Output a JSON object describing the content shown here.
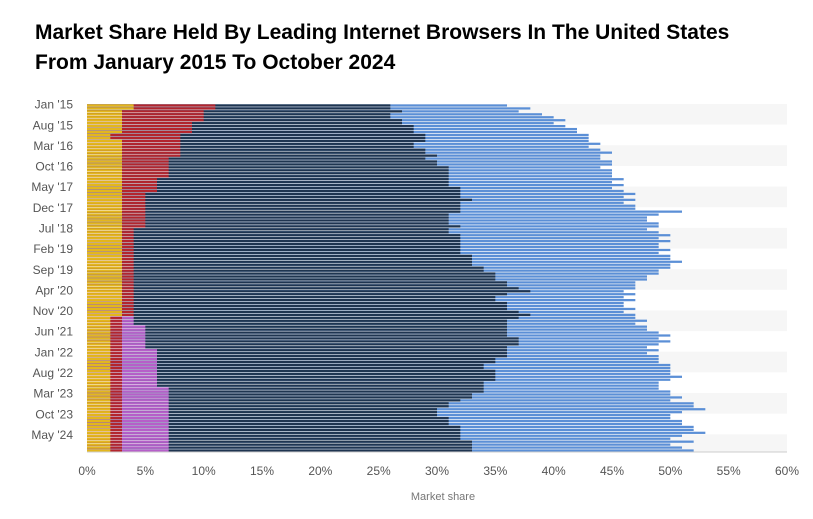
{
  "chart_data": {
    "type": "bar",
    "orientation": "horizontal",
    "title": "Market Share Held By Leading Internet Browsers In The United States From January 2015 To October 2024",
    "x_label": "Market share",
    "categories": [
      "Jan '15",
      null,
      null,
      null,
      null,
      null,
      null,
      "Aug '15",
      null,
      null,
      null,
      null,
      null,
      null,
      "Mar '16",
      null,
      null,
      null,
      null,
      null,
      null,
      "Oct '16",
      null,
      null,
      null,
      null,
      null,
      null,
      "May '17",
      null,
      null,
      null,
      null,
      null,
      null,
      "Dec '17",
      null,
      null,
      null,
      null,
      null,
      null,
      "Jul '18",
      null,
      null,
      null,
      null,
      null,
      null,
      "Feb '19",
      null,
      null,
      null,
      null,
      null,
      null,
      "Sep '19",
      null,
      null,
      null,
      null,
      null,
      null,
      "Apr '20",
      null,
      null,
      null,
      null,
      null,
      null,
      "Nov '20",
      null,
      null,
      null,
      null,
      null,
      null,
      "Jun '21",
      null,
      null,
      null,
      null,
      null,
      null,
      "Jan '22",
      null,
      null,
      null,
      null,
      null,
      null,
      "Aug '22",
      null,
      null,
      null,
      null,
      null,
      null,
      "Mar '23",
      null,
      null,
      null,
      null,
      null,
      null,
      "Oct '23",
      null,
      null,
      null,
      null,
      null,
      null,
      "May '24",
      null,
      null,
      null,
      null,
      null
    ],
    "xlim": [
      0,
      60
    ],
    "xticks": [
      {
        "value": 0,
        "label": "0%"
      },
      {
        "value": 5,
        "label": "5%"
      },
      {
        "value": 10,
        "label": "10%"
      },
      {
        "value": 15,
        "label": "15%"
      },
      {
        "value": 20,
        "label": "20%"
      },
      {
        "value": 25,
        "label": "25%"
      },
      {
        "value": 30,
        "label": "30%"
      },
      {
        "value": 35,
        "label": "35%"
      },
      {
        "value": 40,
        "label": "40%"
      },
      {
        "value": 45,
        "label": "45%"
      },
      {
        "value": 50,
        "label": "50%"
      },
      {
        "value": 55,
        "label": "55%"
      },
      {
        "value": 60,
        "label": "60%"
      }
    ],
    "series": [
      {
        "color": "#5b8fd6",
        "values": [
          36,
          38,
          37,
          39,
          40,
          41,
          40,
          41,
          42,
          42,
          43,
          43,
          43,
          44,
          43,
          44,
          45,
          44,
          44,
          45,
          45,
          44,
          45,
          45,
          45,
          46,
          45,
          46,
          45,
          46,
          47,
          46,
          47,
          46,
          47,
          47,
          51,
          49,
          48,
          48,
          49,
          49,
          48,
          49,
          50,
          49,
          50,
          49,
          49,
          50,
          49,
          50,
          50,
          51,
          50,
          50,
          49,
          49,
          48,
          48,
          47,
          47,
          47,
          46,
          47,
          46,
          47,
          46,
          46,
          47,
          46,
          47,
          47,
          48,
          47,
          48,
          48,
          49,
          50,
          49,
          50,
          49,
          48,
          49,
          48,
          49,
          49,
          49,
          50,
          50,
          50,
          50,
          51,
          50,
          49,
          49,
          49,
          50,
          50,
          51,
          50,
          52,
          52,
          53,
          51,
          50,
          50,
          51,
          51,
          52,
          52,
          53,
          51,
          50,
          52,
          50,
          51,
          52
        ]
      },
      {
        "color": "#1f3550",
        "values": [
          26,
          26,
          27,
          26,
          26,
          27,
          27,
          28,
          28,
          28,
          29,
          29,
          29,
          28,
          28,
          29,
          29,
          30,
          29,
          30,
          30,
          31,
          31,
          31,
          31,
          31,
          31,
          31,
          32,
          32,
          32,
          32,
          33,
          32,
          32,
          32,
          32,
          31,
          31,
          31,
          31,
          32,
          31,
          31,
          32,
          32,
          32,
          32,
          32,
          32,
          32,
          33,
          33,
          33,
          33,
          34,
          34,
          35,
          35,
          35,
          36,
          36,
          37,
          38,
          36,
          35,
          35,
          36,
          36,
          36,
          37,
          38,
          37,
          36,
          36,
          36,
          36,
          36,
          36,
          37,
          37,
          37,
          36,
          36,
          36,
          36,
          35,
          35,
          34,
          34,
          35,
          35,
          35,
          35,
          34,
          34,
          34,
          34,
          33,
          33,
          32,
          31,
          31,
          30,
          30,
          30,
          31,
          31,
          31,
          32,
          32,
          32,
          32,
          32,
          33,
          33,
          33,
          33
        ]
      },
      {
        "color": "#b65fc9",
        "values": [
          0,
          0,
          0,
          0,
          0,
          0,
          0,
          0,
          0,
          0,
          0,
          0,
          0,
          0,
          0,
          0,
          0,
          0,
          0,
          0,
          0,
          0,
          0,
          0,
          0,
          0,
          0,
          0,
          0,
          0,
          0,
          0,
          0,
          0,
          0,
          0,
          0,
          0,
          0,
          0,
          0,
          0,
          0,
          0,
          0,
          0,
          0,
          0,
          0,
          0,
          0,
          0,
          0,
          0,
          0,
          0,
          0,
          0,
          0,
          0,
          1,
          1,
          1,
          1,
          2,
          2,
          2,
          2,
          3,
          3,
          3,
          3,
          4,
          4,
          4,
          5,
          5,
          5,
          5,
          5,
          5,
          5,
          5,
          6,
          6,
          6,
          6,
          6,
          6,
          6,
          6,
          6,
          6,
          6,
          6,
          6,
          7,
          7,
          7,
          7,
          7,
          7,
          7,
          7,
          7,
          7,
          7,
          7,
          7,
          7,
          7,
          7,
          7,
          7,
          7,
          7,
          7,
          7
        ]
      },
      {
        "color": "#b3252d",
        "values": [
          11,
          11,
          10,
          10,
          10,
          10,
          9,
          9,
          9,
          9,
          8,
          8,
          8,
          8,
          8,
          8,
          8,
          8,
          7,
          7,
          7,
          7,
          7,
          7,
          7,
          6,
          6,
          6,
          6,
          6,
          5,
          5,
          5,
          5,
          5,
          5,
          5,
          5,
          5,
          5,
          5,
          5,
          4,
          4,
          4,
          4,
          4,
          4,
          4,
          4,
          4,
          4,
          4,
          4,
          4,
          4,
          4,
          4,
          4,
          4,
          4,
          4,
          4,
          4,
          4,
          4,
          4,
          4,
          4,
          4,
          4,
          4,
          3,
          3,
          3,
          3,
          3,
          3,
          3,
          3,
          3,
          3,
          3,
          3,
          3,
          3,
          3,
          3,
          3,
          3,
          3,
          3,
          3,
          3,
          3,
          3,
          3,
          3,
          3,
          3,
          3,
          3,
          3,
          3,
          3,
          3,
          3,
          3,
          3,
          3,
          3,
          3,
          3,
          3,
          3,
          3,
          3,
          3
        ]
      },
      {
        "color": "#e3b71d",
        "values": [
          4,
          4,
          3,
          3,
          3,
          3,
          3,
          3,
          3,
          3,
          2,
          2,
          3,
          3,
          3,
          3,
          3,
          3,
          3,
          3,
          3,
          3,
          3,
          3,
          3,
          3,
          3,
          3,
          3,
          3,
          3,
          3,
          3,
          3,
          3,
          3,
          3,
          3,
          3,
          3,
          3,
          3,
          3,
          3,
          3,
          3,
          3,
          3,
          3,
          3,
          3,
          3,
          3,
          3,
          3,
          3,
          3,
          3,
          3,
          3,
          3,
          3,
          3,
          3,
          3,
          3,
          3,
          3,
          3,
          3,
          3,
          3,
          2,
          2,
          2,
          2,
          2,
          2,
          2,
          2,
          2,
          2,
          2,
          2,
          2,
          2,
          2,
          2,
          2,
          2,
          2,
          2,
          2,
          2,
          2,
          2,
          2,
          2,
          2,
          2,
          2,
          2,
          2,
          2,
          2,
          2,
          2,
          2,
          2,
          2,
          2,
          2,
          2,
          2,
          2,
          2,
          2,
          2
        ]
      }
    ]
  }
}
